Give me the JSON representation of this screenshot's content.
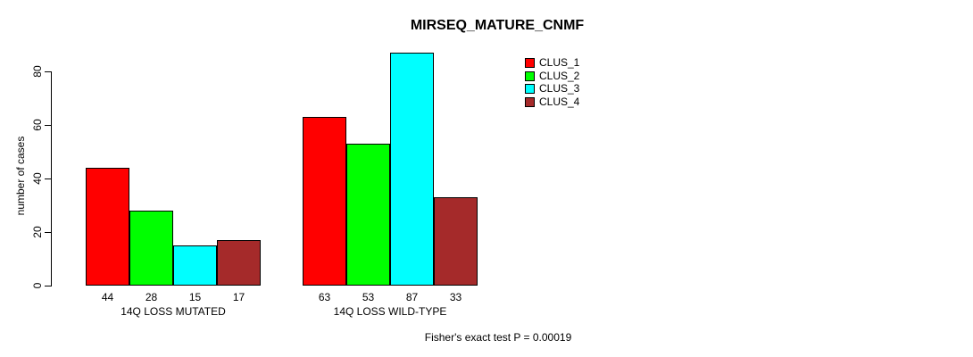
{
  "chart_data": {
    "type": "bar",
    "title": "MIRSEQ_MATURE_CNMF",
    "xlabel": "",
    "ylabel": "number of cases",
    "ylim": [
      0,
      87
    ],
    "yticks": [
      0,
      20,
      40,
      60,
      80
    ],
    "grid": false,
    "legend_position": "top-right-inside",
    "bar_value_labels": true,
    "categories": [
      "14Q LOSS MUTATED",
      "14Q LOSS WILD-TYPE"
    ],
    "series": [
      {
        "name": "CLUS_1",
        "color": "#FF0000",
        "values": [
          44,
          63
        ]
      },
      {
        "name": "CLUS_2",
        "color": "#00FF00",
        "values": [
          28,
          53
        ]
      },
      {
        "name": "CLUS_3",
        "color": "#00FFFF",
        "values": [
          15,
          87
        ]
      },
      {
        "name": "CLUS_4",
        "color": "#A52A2A",
        "values": [
          17,
          33
        ]
      }
    ],
    "annotation": "Fisher's exact test P = 0.00019"
  }
}
